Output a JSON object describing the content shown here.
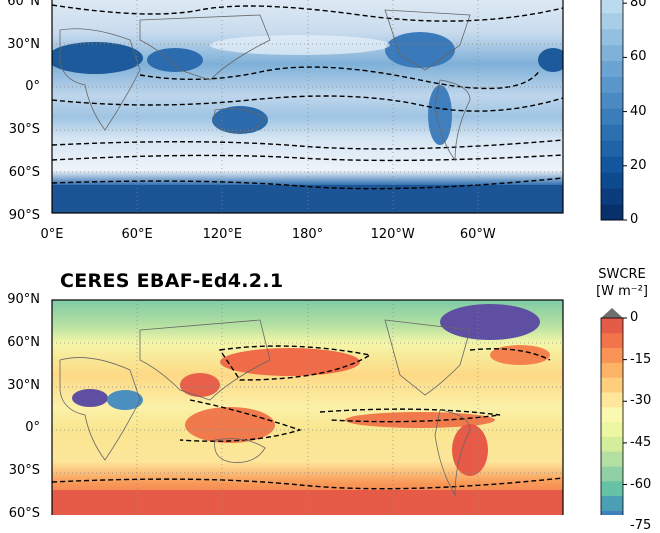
{
  "chart_data": [
    {
      "type": "heatmap",
      "title": "",
      "map_projection": "PlateCarree",
      "lat_ticks": [
        "60°N",
        "30°N",
        "0°",
        "30°S",
        "60°S",
        "90°S"
      ],
      "lat_values": [
        60,
        30,
        0,
        -30,
        -60,
        -90
      ],
      "lon_ticks": [
        "0°E",
        "60°E",
        "120°E",
        "180°",
        "120°W",
        "60°W"
      ],
      "lon_values": [
        0,
        60,
        120,
        180,
        240,
        300
      ],
      "colormap": "Blues_r",
      "colorbar": {
        "label": "",
        "ticks": [
          "0",
          "20",
          "40",
          "60",
          "80"
        ],
        "tick_values": [
          0,
          20,
          40,
          60,
          80
        ],
        "range": [
          0,
          100
        ],
        "colors": [
          "#08306b",
          "#0b3d7e",
          "#0d4a8f",
          "#14569e",
          "#1f63a8",
          "#2b70b1",
          "#3a7dba",
          "#4a89c2",
          "#5a96ca",
          "#6ba3d2",
          "#80b1d9",
          "#93bfe0",
          "#a8cde7",
          "#bcdaee",
          "#d0e5f3",
          "#e2eff8",
          "#f0f6fb"
        ]
      },
      "contours": "dashed black",
      "gridlines": "dotted"
    },
    {
      "type": "heatmap",
      "title": "CERES EBAF-Ed4.2.1",
      "map_projection": "PlateCarree",
      "lat_ticks": [
        "90°N",
        "60°N",
        "30°N",
        "0°",
        "30°S",
        "60°S"
      ],
      "lat_values": [
        90,
        60,
        30,
        0,
        -30,
        -60
      ],
      "colormap": "Spectral",
      "colorbar": {
        "label_line1": "SWCRE",
        "label_line2": "[W m⁻²]",
        "ticks": [
          "0",
          "-15",
          "-30",
          "-45",
          "-60",
          "-75"
        ],
        "tick_values": [
          0,
          -15,
          -30,
          -45,
          -60,
          -75
        ],
        "range": [
          -80,
          0
        ],
        "extend": "max",
        "extend_color": "#6e6e6e",
        "colors": [
          "#5e4fa2",
          "#3f7fbc",
          "#4a9fb5",
          "#66c2a5",
          "#8fd1a4",
          "#b3e0a2",
          "#d4ed9b",
          "#ecf7a2",
          "#fbf8b0",
          "#fee79a",
          "#fdcf7d",
          "#fdb366",
          "#f99356",
          "#f3744a",
          "#e45c48"
        ]
      },
      "contours": "dashed black",
      "gridlines": "dotted"
    }
  ]
}
